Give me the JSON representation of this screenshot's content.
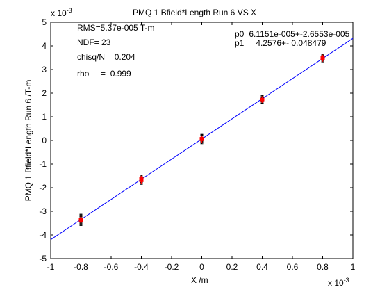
{
  "chart_data": {
    "type": "scatter",
    "title": "PMQ 1 Bfield*Length Run 6 VS X",
    "xlabel": "X /m",
    "ylabel": "PMQ 1 Bfield*Length Run 6 /T-m",
    "x_multiplier": "x 10",
    "x_exponent": "-3",
    "y_multiplier": "x 10",
    "y_exponent": "-3",
    "xlim": [
      -1,
      1
    ],
    "ylim": [
      -5,
      5
    ],
    "x_ticks": [
      "-1",
      "-0.8",
      "-0.6",
      "-0.4",
      "-0.2",
      "0",
      "0.2",
      "0.4",
      "0.6",
      "0.8",
      "1"
    ],
    "y_ticks": [
      "-5",
      "-4",
      "-3",
      "-2",
      "-1",
      "0",
      "1",
      "2",
      "3",
      "4",
      "5"
    ],
    "fit_line": {
      "intercept": 0.0611,
      "slope": 4.2576,
      "color": "#0000ff"
    },
    "points": [
      {
        "x": -0.8,
        "y": -3.36,
        "err": 0.18
      },
      {
        "x": -0.8,
        "y": -3.42,
        "err": 0.18
      },
      {
        "x": -0.8,
        "y": -3.33,
        "err": 0.18
      },
      {
        "x": -0.8,
        "y": -3.4,
        "err": 0.18
      },
      {
        "x": -0.8,
        "y": -3.3,
        "err": 0.18
      },
      {
        "x": -0.4,
        "y": -1.62,
        "err": 0.12
      },
      {
        "x": -0.4,
        "y": -1.7,
        "err": 0.12
      },
      {
        "x": -0.4,
        "y": -1.58,
        "err": 0.12
      },
      {
        "x": -0.4,
        "y": -1.66,
        "err": 0.12
      },
      {
        "x": -0.4,
        "y": -1.74,
        "err": 0.12
      },
      {
        "x": 0,
        "y": 0.05,
        "err": 0.14
      },
      {
        "x": 0,
        "y": 0.1,
        "err": 0.14
      },
      {
        "x": 0,
        "y": 0.0,
        "err": 0.14
      },
      {
        "x": 0,
        "y": 0.08,
        "err": 0.14
      },
      {
        "x": 0,
        "y": 0.12,
        "err": 0.14
      },
      {
        "x": 0.4,
        "y": 1.74,
        "err": 0.12
      },
      {
        "x": 0.4,
        "y": 1.7,
        "err": 0.12
      },
      {
        "x": 0.4,
        "y": 1.78,
        "err": 0.12
      },
      {
        "x": 0.4,
        "y": 1.68,
        "err": 0.12
      },
      {
        "x": 0.8,
        "y": 3.46,
        "err": 0.1
      },
      {
        "x": 0.8,
        "y": 3.5,
        "err": 0.1
      },
      {
        "x": 0.8,
        "y": 3.42,
        "err": 0.1
      },
      {
        "x": 0.8,
        "y": 3.54,
        "err": 0.1
      }
    ],
    "point_color": "#ff0000",
    "error_color": "#000000",
    "grid": false,
    "stats": {
      "rms": "RMS=5.37e-005 T-m",
      "ndf": "NDF=   23",
      "chisq": "chisq/N = 0.204",
      "rho": "rho     =  0.999",
      "p0": "p0=6.1151e-005+-2.6553e-005",
      "p1": "p1=   4.2576+- 0.048479"
    }
  }
}
